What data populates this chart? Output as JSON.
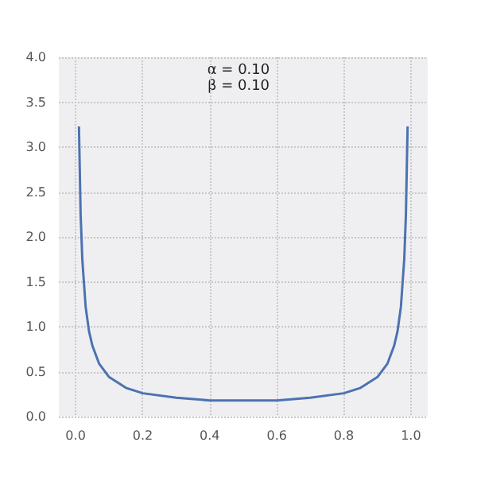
{
  "chart_data": {
    "type": "line",
    "x": [
      0.01,
      0.015,
      0.02,
      0.03,
      0.04,
      0.05,
      0.07,
      0.1,
      0.15,
      0.2,
      0.3,
      0.4,
      0.5,
      0.6,
      0.7,
      0.8,
      0.85,
      0.9,
      0.93,
      0.95,
      0.96,
      0.97,
      0.98,
      0.985,
      0.99
    ],
    "series": [
      {
        "color": "#4c72b0",
        "values": [
          3.23,
          2.25,
          1.75,
          1.22,
          0.95,
          0.79,
          0.59,
          0.44,
          0.32,
          0.26,
          0.21,
          0.18,
          0.18,
          0.18,
          0.21,
          0.26,
          0.32,
          0.44,
          0.59,
          0.79,
          0.95,
          1.22,
          1.75,
          2.25,
          3.23
        ]
      }
    ],
    "annotations": [
      "α = 0.10",
      "β = 0.10"
    ],
    "xlim": [
      -0.05,
      1.05
    ],
    "xticks": [
      {
        "value": 0,
        "label": "0.0"
      },
      0.2,
      0.4,
      0.6,
      0.8,
      {
        "value": 1,
        "label": "1.0"
      }
    ],
    "ylim": [
      0,
      4
    ],
    "yticks": [
      {
        "value": 0,
        "label": "0.0"
      },
      0.5,
      {
        "value": 1,
        "label": "1.0"
      },
      1.5,
      {
        "value": 2,
        "label": "2.0"
      },
      2.5,
      {
        "value": 3,
        "label": "3.0"
      },
      3.5,
      {
        "value": 4,
        "label": "4.0"
      }
    ],
    "grid": true,
    "marker": "none",
    "line_style": "solid"
  }
}
